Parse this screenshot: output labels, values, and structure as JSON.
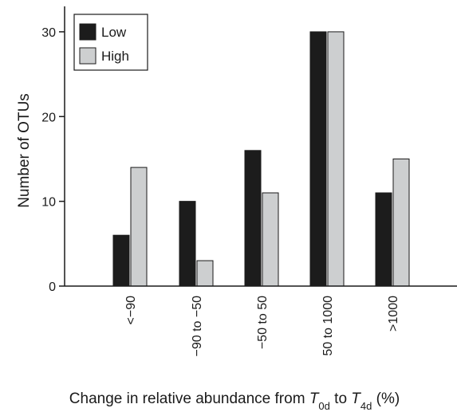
{
  "chart_data": {
    "type": "bar",
    "categories": [
      "<−90",
      "−90 to −50",
      "−50 to 50",
      "50 to 1000",
      ">1000"
    ],
    "series": [
      {
        "name": "Low",
        "values": [
          6,
          10,
          16,
          30,
          11
        ],
        "color": "#1c1c1c"
      },
      {
        "name": "High",
        "values": [
          14,
          3,
          11,
          30,
          15
        ],
        "color": "#cdcfd0"
      }
    ],
    "ylabel": "Number of OTUs",
    "xlabel": {
      "parts": [
        {
          "text": "Change in relative abundance from "
        },
        {
          "text": "T",
          "italic": true
        },
        {
          "text": "0d",
          "sub": true
        },
        {
          "text": " to "
        },
        {
          "text": "T",
          "italic": true
        },
        {
          "text": "4d",
          "sub": true
        },
        {
          "text": " (%)"
        }
      ]
    },
    "yticks": [
      0,
      10,
      20,
      30
    ],
    "ylim": [
      0,
      33
    ],
    "legend": "top-left",
    "grid": false
  }
}
